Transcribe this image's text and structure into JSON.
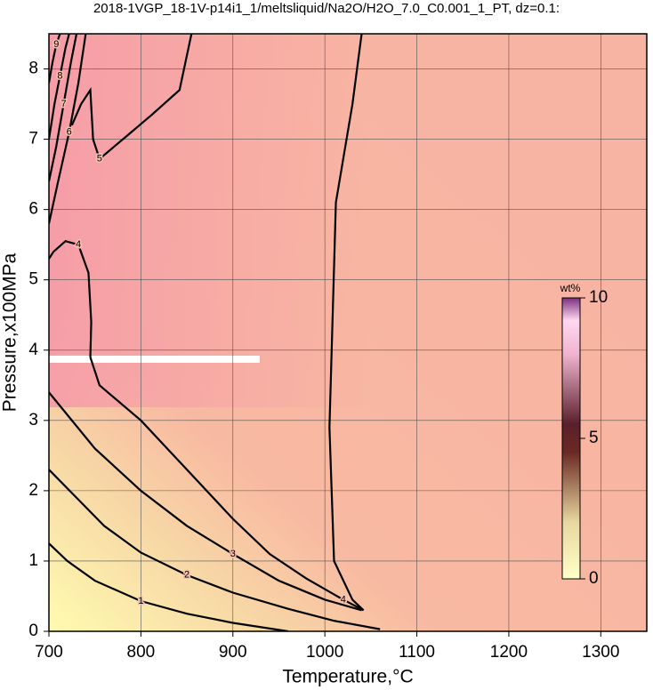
{
  "chart_data": {
    "type": "contour",
    "title": "2018-1VGP_18-1V-p14i1_1/meltsliquid/Na2O/H2O_7.0_C0.001_1_PT, dz=0.1:",
    "x_label": "Temperature,°C",
    "y_label": "Pressure,x100MPa",
    "xlim": [
      700,
      1350
    ],
    "xticks": [
      700,
      800,
      900,
      1000,
      1100,
      1200,
      1300
    ],
    "ylim": [
      0,
      8.5
    ],
    "yticks": [
      0,
      1,
      2,
      3,
      4,
      5,
      6,
      7,
      8
    ],
    "grid": true,
    "contours": [
      {
        "level": 1,
        "x": [
          700,
          720,
          750,
          800,
          850,
          900,
          960
        ],
        "y": [
          1.25,
          1.0,
          0.72,
          0.43,
          0.25,
          0.12,
          0.0
        ]
      },
      {
        "level": 2,
        "x": [
          700,
          730,
          760,
          800,
          850,
          900,
          960,
          1010,
          1060
        ],
        "y": [
          2.3,
          1.9,
          1.5,
          1.12,
          0.8,
          0.55,
          0.32,
          0.15,
          0.03
        ]
      },
      {
        "level": 3,
        "x": [
          700,
          750,
          800,
          850,
          900,
          950,
          1000,
          1040
        ],
        "y": [
          3.4,
          2.6,
          2.0,
          1.5,
          1.1,
          0.72,
          0.45,
          0.3
        ]
      },
      {
        "level": 4,
        "x": [
          745,
          755,
          800,
          850,
          900,
          940,
          980,
          1020,
          1042,
          1030,
          1010,
          1005,
          1012,
          1030,
          1040
        ],
        "y": [
          3.9,
          3.5,
          3.0,
          2.3,
          1.6,
          1.1,
          0.75,
          0.45,
          0.3,
          0.45,
          1.0,
          2.9,
          6.1,
          7.5,
          8.5
        ]
      },
      {
        "level": 4,
        "x": [
          745,
          746,
          743,
          732,
          718,
          705,
          700
        ],
        "y": [
          3.9,
          4.4,
          5.1,
          5.5,
          5.55,
          5.4,
          5.3
        ]
      },
      {
        "level": 5,
        "x": [
          855,
          842,
          812,
          785,
          755,
          748,
          745,
          735,
          725
        ],
        "y": [
          8.5,
          7.7,
          7.35,
          7.05,
          6.72,
          7.0,
          7.7,
          7.5,
          7.2
        ]
      },
      {
        "level": 6,
        "x": [
          700,
          710,
          722,
          732,
          740
        ],
        "y": [
          5.8,
          6.4,
          7.1,
          7.8,
          8.5
        ]
      },
      {
        "level": 7,
        "x": [
          700,
          708,
          716,
          724,
          730
        ],
        "y": [
          6.4,
          6.9,
          7.5,
          8.1,
          8.5
        ]
      },
      {
        "level": 8,
        "x": [
          700,
          706,
          712,
          718,
          722
        ],
        "y": [
          7.0,
          7.5,
          7.9,
          8.3,
          8.5
        ]
      },
      {
        "level": 9,
        "x": [
          700,
          704,
          708,
          712
        ],
        "y": [
          7.8,
          8.1,
          8.35,
          8.5
        ]
      }
    ],
    "colorbar": {
      "label": "wt%",
      "lim": [
        0,
        10
      ],
      "ticks": [
        0,
        5,
        10
      ]
    }
  }
}
